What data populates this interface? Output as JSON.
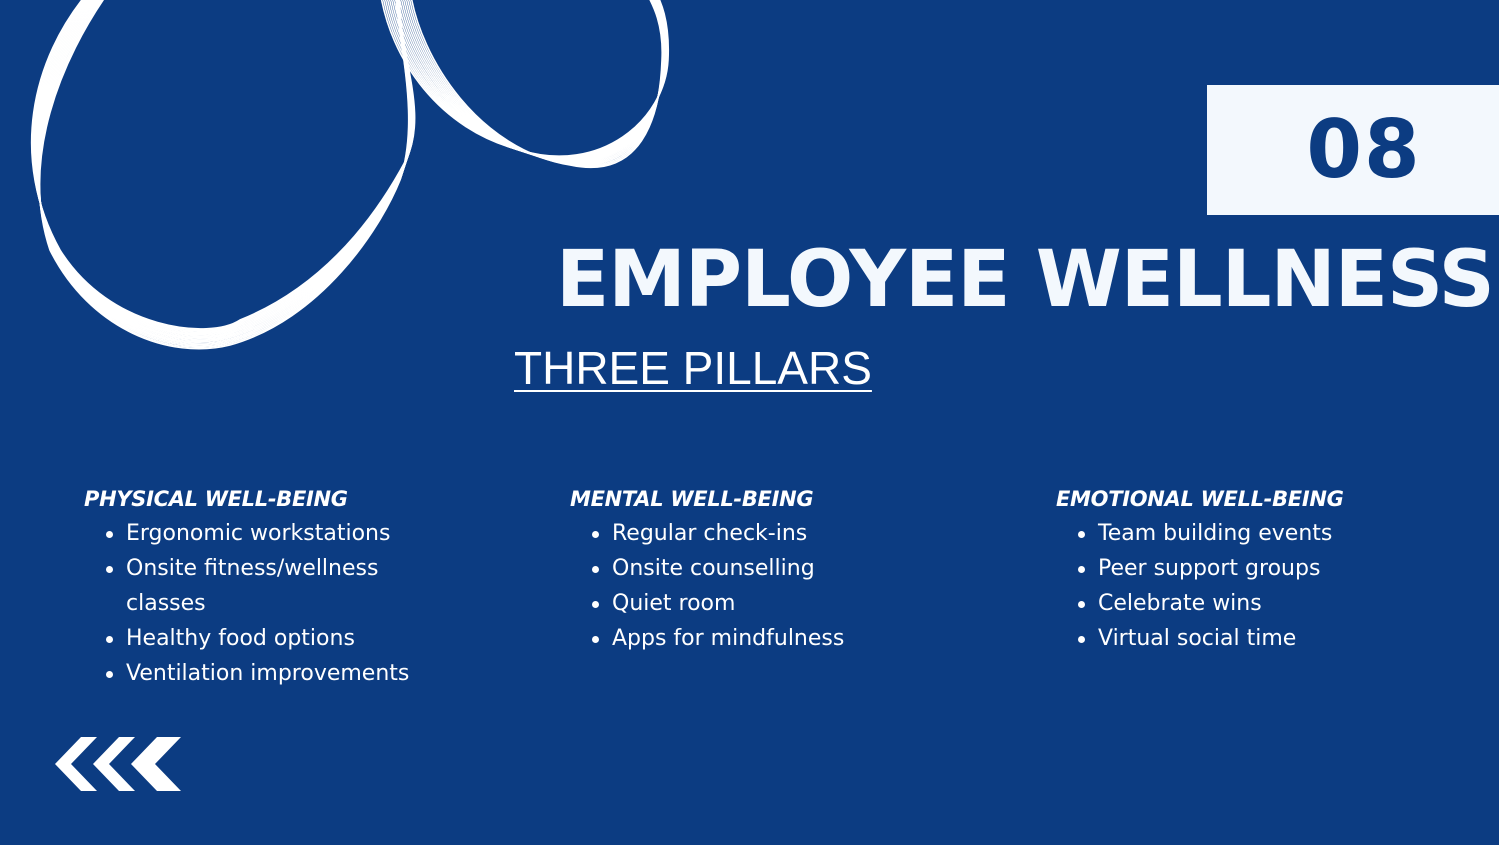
{
  "slide": {
    "number": "08",
    "title": "EMPLOYEE WELLNESS",
    "subtitle": "THREE PILLARS"
  },
  "pillars": [
    {
      "heading": "PHYSICAL WELL-BEING",
      "items": [
        "Ergonomic workstations",
        "Onsite fitness/wellness classes",
        "Healthy food options",
        "Ventilation improvements"
      ]
    },
    {
      "heading": "MENTAL WELL-BEING",
      "items": [
        "Regular check-ins",
        "Onsite counselling",
        "Quiet room",
        "Apps for mindfulness"
      ]
    },
    {
      "heading": "EMOTIONAL WELL-BEING",
      "items": [
        "Team building events",
        "Peer support groups",
        "Celebrate wins",
        "Virtual social time"
      ]
    }
  ],
  "icons": {
    "decoration": "wave-lines-graphic",
    "navigation": "back-chevrons-icon"
  },
  "colors": {
    "background": "#0c3c82",
    "accent_box": "#f3f8fd",
    "text": "#ffffff"
  }
}
